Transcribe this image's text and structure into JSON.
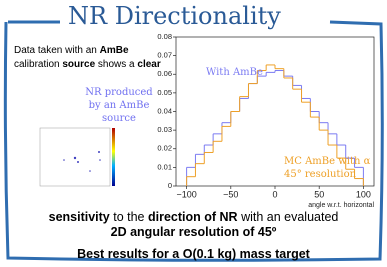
{
  "title": "NR Directionality",
  "intro": [
    {
      "text": "Data taken with an ",
      "bold": false
    },
    {
      "text": "AmBe",
      "bold": true
    },
    {
      "text": " calibration ",
      "bold": false
    },
    {
      "text": "source",
      "bold": true
    },
    {
      "text": " shows a ",
      "bold": false
    },
    {
      "text": "clear",
      "bold": true
    }
  ],
  "inset_caption": "NR produced by an AmBe source",
  "chart_data": {
    "type": "step-histogram",
    "xlabel": "angle w.r.t. horizontal",
    "bins": [
      -100,
      -90,
      -80,
      -70,
      -60,
      -50,
      -40,
      -30,
      -20,
      -10,
      0,
      10,
      20,
      30,
      40,
      50,
      60,
      70,
      80,
      90,
      100
    ],
    "series": [
      {
        "name": "With AmBe",
        "color": "#7b7bf2",
        "values": [
          0.01,
          0.017,
          0.022,
          0.028,
          0.034,
          0.04,
          0.047,
          0.055,
          0.059,
          0.061,
          0.062,
          0.059,
          0.054,
          0.047,
          0.04,
          0.034,
          0.028,
          0.022,
          0.015,
          0.01
        ]
      },
      {
        "name": "MC AmBe with α 45° resolution",
        "color": "#eea027",
        "values": [
          0.005,
          0.012,
          0.018,
          0.024,
          0.032,
          0.04,
          0.048,
          0.055,
          0.062,
          0.065,
          0.063,
          0.058,
          0.052,
          0.045,
          0.037,
          0.03,
          0.022,
          0.015,
          0.009,
          0.004
        ]
      }
    ],
    "xlim": [
      -112,
      112
    ],
    "xticks": [
      {
        "value": -100,
        "label": "−100"
      },
      {
        "value": -50,
        "label": "−50"
      },
      0,
      50,
      100
    ],
    "ylim": [
      0,
      0.08
    ],
    "yticks": [
      0,
      0.01,
      0.02,
      0.03,
      0.04,
      0.05,
      0.06,
      0.07,
      0.08
    ]
  },
  "conclusion": [
    {
      "text": "sensitivity",
      "bold": true
    },
    {
      "text": " to the ",
      "bold": false
    },
    {
      "text": "direction of NR",
      "bold": true
    },
    {
      "text": " with an evaluated ",
      "bold": false
    },
    {
      "text": "2D angular resolution of 45º",
      "bold": true
    }
  ],
  "footer": "Best results for a O(0.1 kg) mass target"
}
